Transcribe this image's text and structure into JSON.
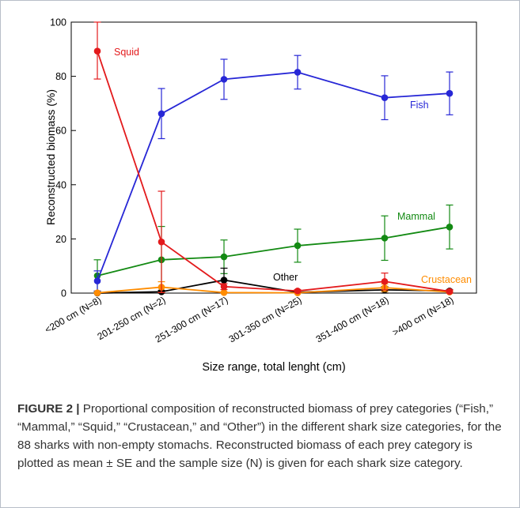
{
  "chart_data": {
    "type": "line",
    "xlabel": "Size range, total lenght (cm)",
    "ylabel": "Reconstructed biomass (%)",
    "ylim": [
      0,
      100
    ],
    "yticks": [
      0,
      20,
      40,
      60,
      80,
      100
    ],
    "grid": false,
    "categories": [
      "<200 cm (N=8)",
      "201-250 cm (N=2)",
      "251-300 cm (N=17)",
      "301-350 cm (N=25)",
      "351-400 cm (N=18)",
      ">400 cm (N=18)"
    ],
    "series": [
      {
        "name": "Squid",
        "color": "#e31a1c",
        "values": [
          89.3,
          18.9,
          2.4,
          0.8,
          4.3,
          0.6
        ],
        "upper": [
          100,
          37.6,
          3.5,
          1.3,
          7.4,
          1.2
        ],
        "lower": [
          79,
          0.2,
          1.3,
          0.3,
          1.2,
          0
        ]
      },
      {
        "name": "Fish",
        "color": "#2727d6",
        "values": [
          4.5,
          66.2,
          78.9,
          81.5,
          72.1,
          73.7
        ],
        "upper": [
          8.2,
          75.5,
          86.3,
          87.7,
          80.2,
          81.6
        ],
        "lower": [
          0.8,
          57,
          71.5,
          75.3,
          64,
          65.8
        ]
      },
      {
        "name": "Mammal",
        "color": "#138a13",
        "values": [
          6.4,
          12.3,
          13.4,
          17.5,
          20.3,
          24.4
        ],
        "upper": [
          12.3,
          24.6,
          19.6,
          23.6,
          28.5,
          32.5
        ],
        "lower": [
          0.5,
          0,
          7.2,
          11.4,
          12.1,
          16.3
        ]
      },
      {
        "name": "Other",
        "color": "#000000",
        "values": [
          0,
          0.5,
          4.8,
          0.3,
          1.2,
          0.8
        ],
        "upper": [
          0,
          1,
          9.2,
          0.5,
          2.4,
          1.3
        ],
        "lower": [
          0,
          0,
          0.4,
          0.1,
          0,
          0.3
        ]
      },
      {
        "name": "Crustacean",
        "color": "#ff8c00",
        "values": [
          0.1,
          2.2,
          0.2,
          0.1,
          2,
          0.4
        ],
        "upper": [
          0.2,
          4.2,
          0.4,
          0.2,
          3.4,
          0.8
        ],
        "lower": [
          0,
          0.2,
          0,
          0,
          0.6,
          0
        ]
      }
    ]
  },
  "caption": {
    "label": "FIGURE 2 |",
    "text": " Proportional composition of reconstructed biomass of prey categories (“Fish,” “Mammal,” “Squid,” “Crustacean,” and “Other”) in the different shark size categories, for the 88 sharks with non-empty stomachs. Reconstructed biomass of each prey category is plotted as mean ± SE and the sample size (N) is given for each shark size category."
  }
}
